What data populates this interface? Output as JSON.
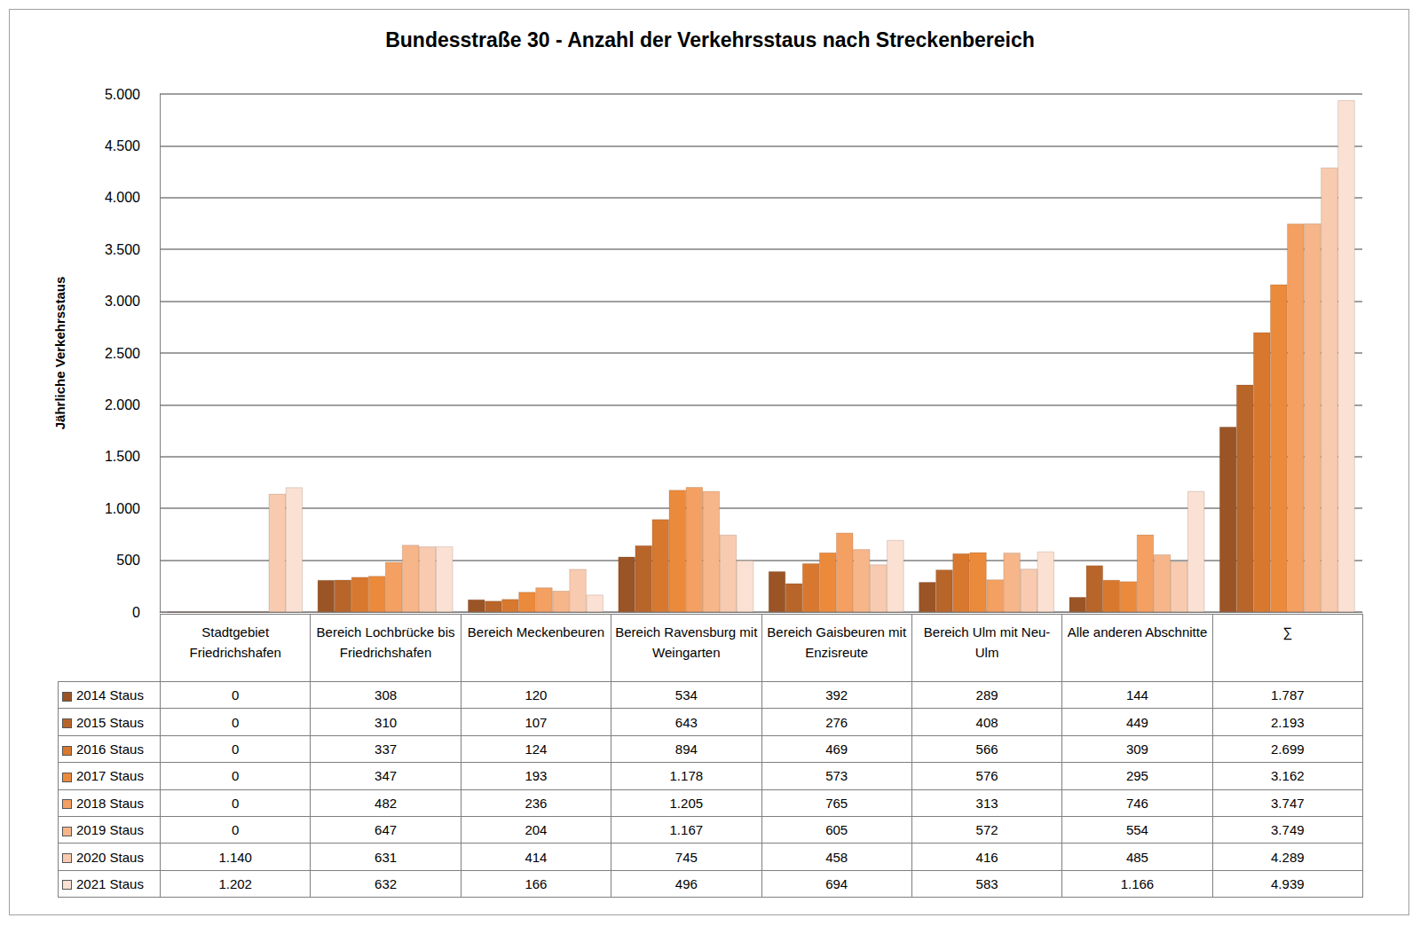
{
  "chart_data": {
    "type": "bar",
    "title": "Bundesstraße 30 - Anzahl der Verkehrsstaus nach Streckenbereich",
    "y_label": "Jährliche Verkehrsstaus",
    "categories": [
      "Stadtgebiet Friedrichshafen",
      "Bereich Lochbrücke bis Friedrichshafen",
      "Bereich Meckenbeuren",
      "Bereich Ravensburg mit Weingarten",
      "Bereich Gaisbeuren mit Enzisreute",
      "Bereich Ulm mit Neu-Ulm",
      "Alle anderen Abschnitte",
      "∑"
    ],
    "series": [
      {
        "name": "2014 Staus",
        "color": "#9a5426",
        "values": [
          0,
          308,
          120,
          534,
          392,
          289,
          144,
          1787
        ],
        "value_labels": [
          "0",
          "308",
          "120",
          "534",
          "392",
          "289",
          "144",
          "1.787"
        ]
      },
      {
        "name": "2015 Staus",
        "color": "#b8652a",
        "values": [
          0,
          310,
          107,
          643,
          276,
          408,
          449,
          2193
        ],
        "value_labels": [
          "0",
          "310",
          "107",
          "643",
          "276",
          "408",
          "449",
          "2.193"
        ]
      },
      {
        "name": "2016 Staus",
        "color": "#d8782f",
        "values": [
          0,
          337,
          124,
          894,
          469,
          566,
          309,
          2699
        ],
        "value_labels": [
          "0",
          "337",
          "124",
          "894",
          "469",
          "566",
          "309",
          "2.699"
        ]
      },
      {
        "name": "2017 Staus",
        "color": "#ec8a3c",
        "values": [
          0,
          347,
          193,
          1178,
          573,
          576,
          295,
          3162
        ],
        "value_labels": [
          "0",
          "347",
          "193",
          "1.178",
          "573",
          "576",
          "295",
          "3.162"
        ]
      },
      {
        "name": "2018 Staus",
        "color": "#f4a062",
        "values": [
          0,
          482,
          236,
          1205,
          765,
          313,
          746,
          3747
        ],
        "value_labels": [
          "0",
          "482",
          "236",
          "1.205",
          "765",
          "313",
          "746",
          "3.747"
        ]
      },
      {
        "name": "2019 Staus",
        "color": "#f6b68a",
        "values": [
          0,
          647,
          204,
          1167,
          605,
          572,
          554,
          3749
        ],
        "value_labels": [
          "0",
          "647",
          "204",
          "1.167",
          "605",
          "572",
          "554",
          "3.749"
        ]
      },
      {
        "name": "2020 Staus",
        "color": "#f8cbb0",
        "values": [
          1140,
          631,
          414,
          745,
          458,
          416,
          485,
          4289
        ],
        "value_labels": [
          "1.140",
          "631",
          "414",
          "745",
          "458",
          "416",
          "485",
          "4.289"
        ]
      },
      {
        "name": "2021 Staus",
        "color": "#fbe1d3",
        "values": [
          1202,
          632,
          166,
          496,
          694,
          583,
          1166,
          4939
        ],
        "value_labels": [
          "1.202",
          "632",
          "166",
          "496",
          "694",
          "583",
          "1.166",
          "4.939"
        ]
      }
    ],
    "ylim": [
      0,
      5000
    ],
    "yticks": [
      0,
      {
        "value": 500,
        "label": "500"
      },
      {
        "value": 1000,
        "label": "1.000"
      },
      {
        "value": 1500,
        "label": "1.500"
      },
      {
        "value": 2000,
        "label": "2.000"
      },
      {
        "value": 2500,
        "label": "2.500"
      },
      {
        "value": 3000,
        "label": "3.000"
      },
      {
        "value": 3500,
        "label": "3.500"
      },
      {
        "value": 4000,
        "label": "4.000"
      },
      {
        "value": 4500,
        "label": "4.500"
      },
      {
        "value": 5000,
        "label": "5.000"
      }
    ],
    "grid": true
  }
}
